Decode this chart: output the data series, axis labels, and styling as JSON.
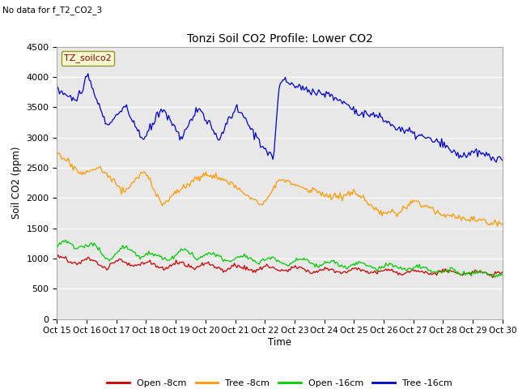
{
  "title": "Tonzi Soil CO2 Profile: Lower CO2",
  "subtitle": "No data for f_T2_CO2_3",
  "ylabel": "Soil CO2 (ppm)",
  "xlabel": "Time",
  "legend_label": "TZ_soilco2",
  "ylim": [
    0,
    4500
  ],
  "xlim": [
    0,
    360
  ],
  "tick_labels": [
    "Oct 15",
    "Oct 16",
    "Oct 17",
    "Oct 18",
    "Oct 19",
    "Oct 20",
    "Oct 21",
    "Oct 22",
    "Oct 23",
    "Oct 24",
    "Oct 25",
    "Oct 26",
    "Oct 27",
    "Oct 28",
    "Oct 29",
    "Oct 30"
  ],
  "bg_color": "#e8e8e8",
  "fig_bg_color": "#ffffff",
  "line_colors": {
    "open_8cm": "#cc0000",
    "tree_8cm": "#ff9900",
    "open_16cm": "#00cc00",
    "tree_16cm": "#0000cc"
  },
  "legend_entries": [
    "Open -8cm",
    "Tree -8cm",
    "Open -16cm",
    "Tree -16cm"
  ],
  "legend_label_facecolor": "#ffffcc",
  "legend_label_edgecolor": "#808000"
}
